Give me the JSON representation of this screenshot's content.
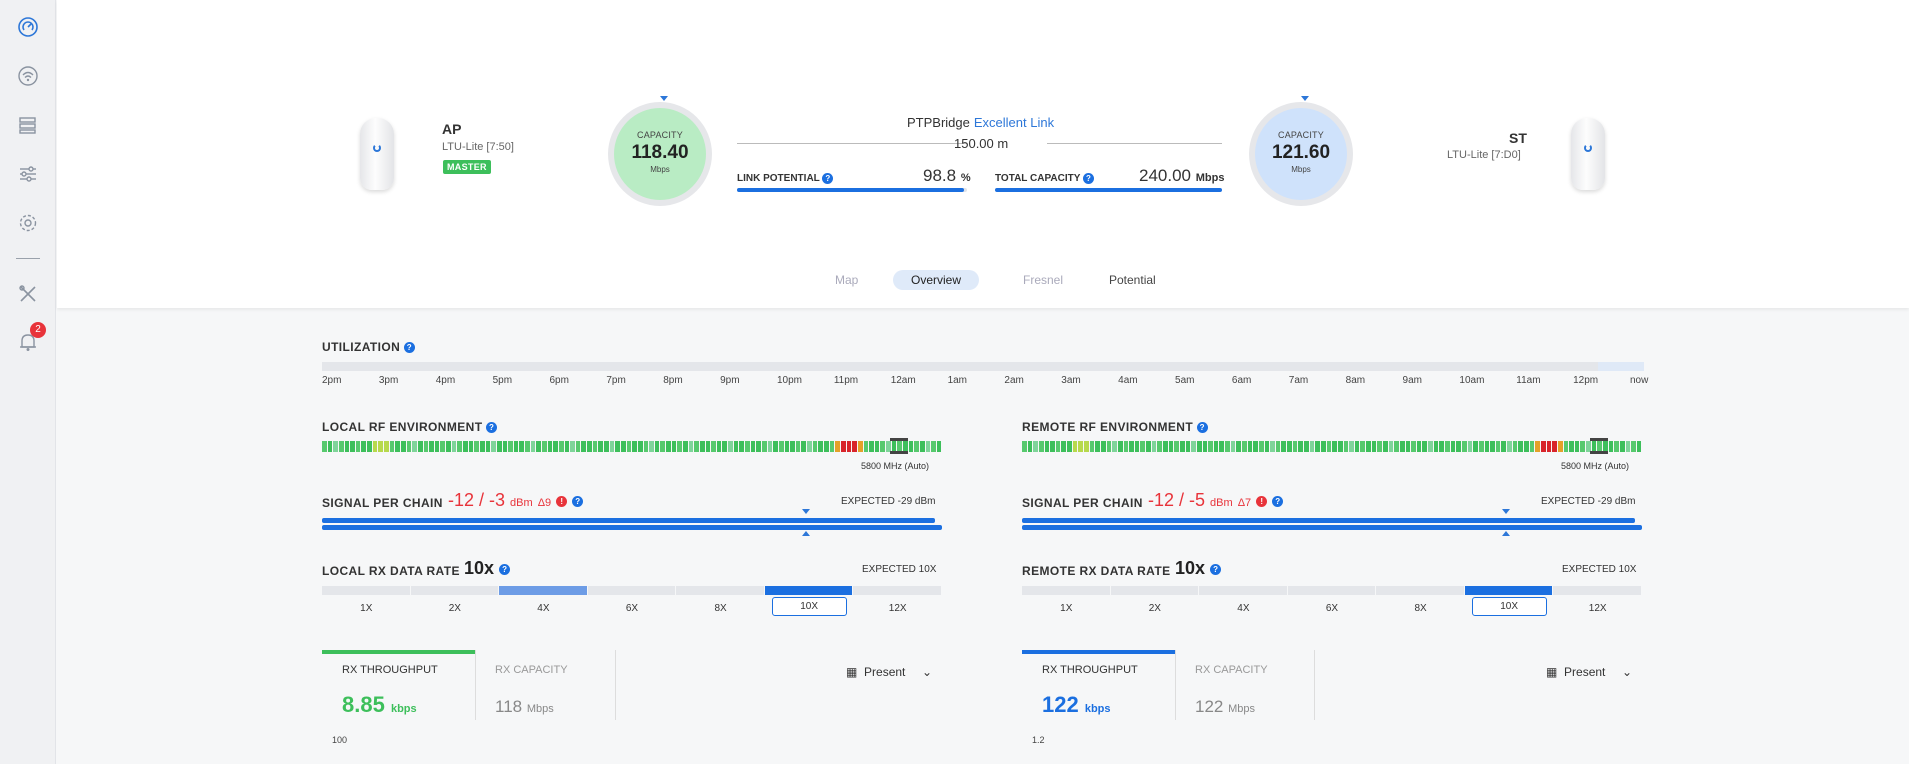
{
  "sidebar": {
    "icons": [
      "dashboard-icon",
      "wifi-icon",
      "devices-icon",
      "sliders-icon",
      "gear-icon",
      "tools-icon",
      "bell-icon"
    ],
    "notification_count": "2"
  },
  "link": {
    "local": {
      "name": "AP",
      "model": "LTU-Lite [7:50]",
      "role": "MASTER"
    },
    "remote": {
      "name": "ST",
      "model": "LTU-Lite [7:D0]"
    },
    "local_capacity": {
      "label": "CAPACITY",
      "value": "118.40",
      "unit": "Mbps"
    },
    "remote_capacity": {
      "label": "CAPACITY",
      "value": "121.60",
      "unit": "Mbps"
    },
    "bridge_name": "PTPBridge",
    "bridge_status": "Excellent Link",
    "distance": "150.00 m",
    "link_potential": {
      "label": "LINK POTENTIAL",
      "value": "98.8",
      "unit": "%",
      "percent": 98.8
    },
    "total_capacity": {
      "label": "TOTAL CAPACITY",
      "value": "240.00",
      "unit": "Mbps"
    }
  },
  "tabs": [
    "Map",
    "Overview",
    "Fresnel",
    "Potential"
  ],
  "utilization": {
    "label": "UTILIZATION",
    "ticks": [
      "2pm",
      "3pm",
      "4pm",
      "5pm",
      "6pm",
      "7pm",
      "8pm",
      "9pm",
      "10pm",
      "11pm",
      "12am",
      "1am",
      "2am",
      "3am",
      "4am",
      "5am",
      "6am",
      "7am",
      "8am",
      "9am",
      "10am",
      "11am",
      "12pm",
      "now"
    ]
  },
  "local": {
    "rf_label": "LOCAL RF ENVIRONMENT",
    "freq": "5800 MHz (Auto)",
    "signal_label": "SIGNAL PER CHAIN",
    "signal_value": "-12 / -3",
    "signal_unit": "dBm",
    "signal_delta": "Δ9",
    "signal_expected": "EXPECTED -29 dBm",
    "rate_label": "LOCAL RX DATA RATE",
    "rate_value": "10x",
    "rate_expected": "EXPECTED 10X",
    "rates": [
      "1X",
      "2X",
      "4X",
      "6X",
      "8X",
      "10X",
      "12X"
    ],
    "throughput": {
      "label": "RX THROUGHPUT",
      "value": "8.85",
      "unit": "kbps"
    },
    "capacity": {
      "label": "RX CAPACITY",
      "value": "118",
      "unit": "Mbps"
    },
    "period": "Present",
    "axis_max": "100"
  },
  "remote": {
    "rf_label": "REMOTE RF ENVIRONMENT",
    "freq": "5800 MHz (Auto)",
    "signal_label": "SIGNAL PER CHAIN",
    "signal_value": "-12 / -5",
    "signal_unit": "dBm",
    "signal_delta": "Δ7",
    "signal_expected": "EXPECTED -29 dBm",
    "rate_label": "REMOTE RX DATA RATE",
    "rate_value": "10x",
    "rate_expected": "EXPECTED 10X",
    "rates": [
      "1X",
      "2X",
      "4X",
      "6X",
      "8X",
      "10X",
      "12X"
    ],
    "throughput": {
      "label": "RX THROUGHPUT",
      "value": "122",
      "unit": "kbps"
    },
    "capacity": {
      "label": "RX CAPACITY",
      "value": "122",
      "unit": "Mbps"
    },
    "period": "Present",
    "axis_max": "1.2"
  },
  "colors": {
    "accent": "#1b6fe0",
    "green": "#3dbf5b",
    "red": "#e8333a"
  }
}
